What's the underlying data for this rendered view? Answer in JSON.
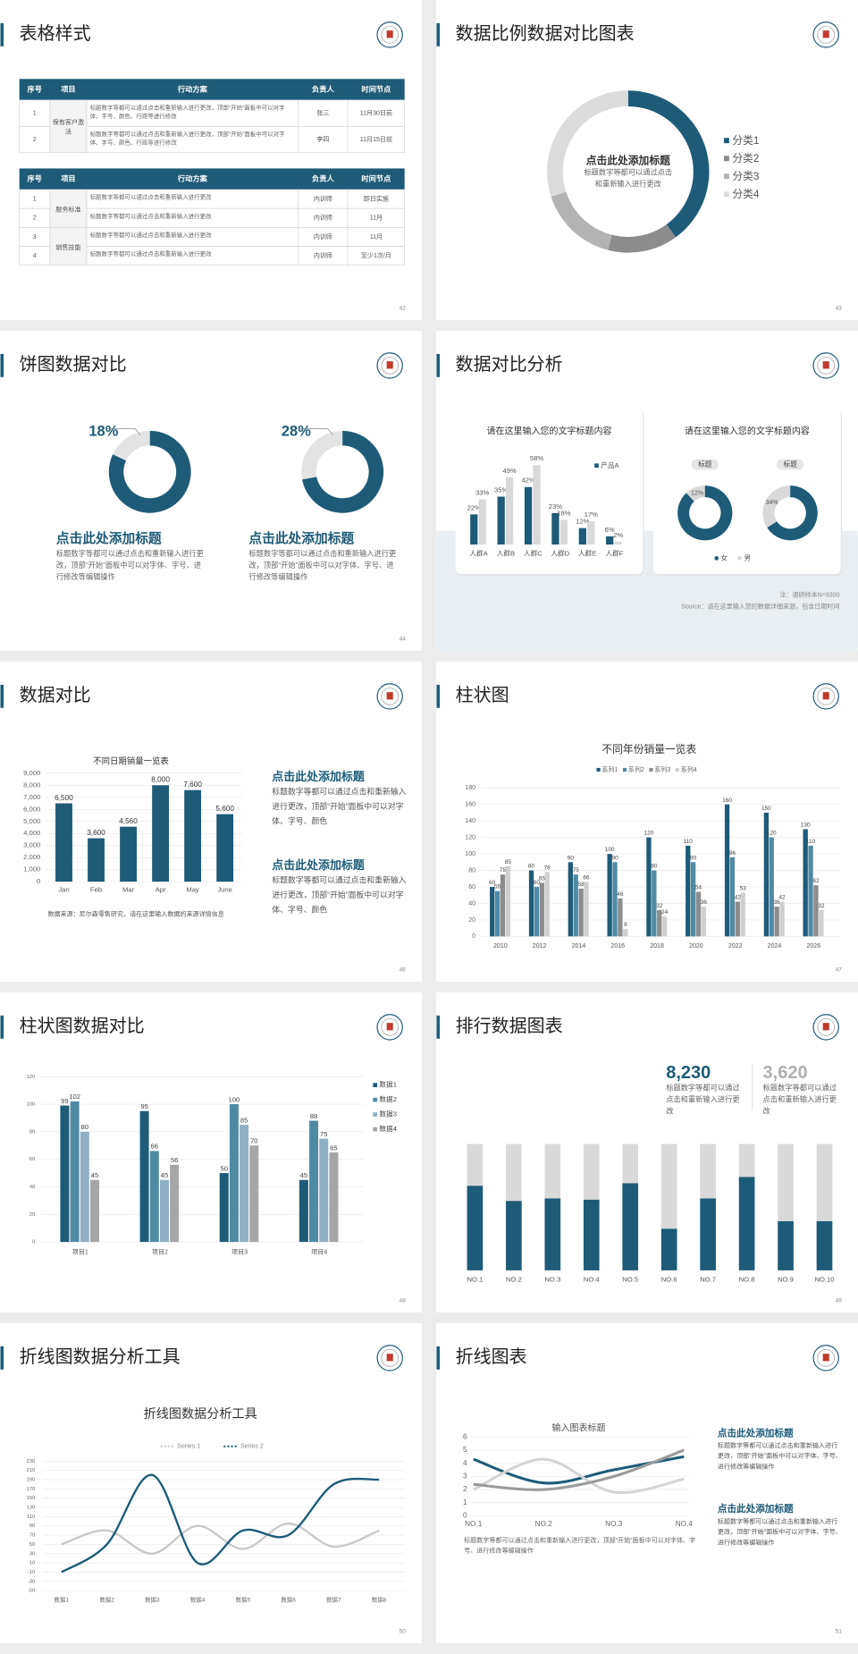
{
  "slides": [
    {
      "title": "表格样式",
      "page": "42",
      "tables": [
        {
          "header": [
            "序号",
            "项目",
            "行动方案",
            "负责人",
            "时间节点"
          ],
          "groups": [
            {
              "item": "保有客户激活",
              "rows": [
                [
                  "1",
                  "标题数字等都可以通过点击和重新输入进行更改，顶部“开始”面板中可以对字体、字号、颜色、行距等进行修改",
                  "张三",
                  "11月30日前"
                ],
                [
                  "2",
                  "标题数字等都可以通过点击和重新输入进行更改，顶部“开始”面板中可以对字体、字号、颜色、行距等进行修改",
                  "李四",
                  "11月15日前"
                ]
              ]
            }
          ]
        },
        {
          "header": [
            "序号",
            "项目",
            "行动方案",
            "负责人",
            "时间节点"
          ],
          "groups": [
            {
              "item": "服务标准",
              "rows": [
                [
                  "1",
                  "标题数字等都可以通过点击和重新输入进行更改",
                  "内训师",
                  "即日实施"
                ],
                [
                  "2",
                  "标题数字等都可以通过点击和重新输入进行更改",
                  "内训师",
                  "11月"
                ]
              ]
            },
            {
              "item": "销售技能",
              "rows": [
                [
                  "3",
                  "标题数字等都可以通过点击和重新输入进行更改",
                  "内训师",
                  "11月"
                ],
                [
                  "4",
                  "标题数字等都可以通过点击和重新输入进行更改",
                  "内训师",
                  "至少1次/月"
                ]
              ]
            }
          ]
        }
      ]
    },
    {
      "title": "数据比例数据对比图表",
      "page": "43",
      "chart": {
        "type": "donut",
        "title": "点击此处添加标题",
        "subtitle": "标题数字等都可以通过点击和重新输入进行更改",
        "categories": [
          "分类1",
          "分类2",
          "分类3",
          "分类4"
        ],
        "values": [
          40,
          14,
          16,
          30
        ],
        "colors": [
          "#1e5b78",
          "#8c8c8c",
          "#b3b3b3",
          "#dcdcdc"
        ]
      }
    },
    {
      "title": "饼图数据对比",
      "page": "44",
      "pies": [
        {
          "value": 18,
          "value_label": "18%",
          "heading": "点击此处添加标题",
          "text": "标题数字等都可以通过点击和重新输入进行更改，顶部“开始”面板中可以对字体、字号、进行修改等编辑操作"
        },
        {
          "value": 28,
          "value_label": "28%",
          "heading": "点击此处添加标题",
          "text": "标题数字等都可以通过点击和重新输入进行更改，顶部“开始”面板中可以对字体、字号、进行修改等编辑操作"
        }
      ]
    },
    {
      "title": "数据对比分析",
      "page": "45",
      "cards": [
        {
          "title": "请在这里输入您的文字标题内容",
          "chart": {
            "type": "bar",
            "categories": [
              "人群A",
              "人群B",
              "人群C",
              "人群D",
              "人群E",
              "人群F"
            ],
            "series": [
              {
                "name": "产品A",
                "color": "#1e5b78",
                "values": [
                  22,
                  35,
                  42,
                  23,
                  12,
                  6
                ],
                "value_labels": [
                  "22%",
                  "35%",
                  "42%",
                  "23%",
                  "12%",
                  "6%"
                ]
              },
              {
                "color": "#d9d9d9",
                "values": [
                  33,
                  49,
                  58,
                  18,
                  17,
                  2
                ],
                "value_labels": [
                  "33%",
                  "49%",
                  "58%",
                  "18%",
                  "17%",
                  "2%"
                ]
              }
            ]
          }
        },
        {
          "title": "请在这里输入您的文字标题内容",
          "pies": [
            {
              "tag": "标题",
              "value": 12,
              "value_label": "12%"
            },
            {
              "tag": "标题",
              "value": 34,
              "value_label": "34%"
            }
          ],
          "legend": [
            {
              "name": "女",
              "color": "#1e5b78"
            },
            {
              "name": "男",
              "color": "#d9d9d9"
            }
          ]
        }
      ],
      "notes": [
        "注：调研样本N=9300",
        "Source：请在这里输入您的数据详细来源，包含日期时间"
      ]
    },
    {
      "title": "数据对比",
      "page": "46",
      "chart": {
        "type": "bar",
        "title": "不同日期销量一览表",
        "categories": [
          "Jan",
          "Feb",
          "Mar",
          "Apr",
          "May",
          "June"
        ],
        "values": [
          6500,
          3600,
          4560,
          8000,
          7600,
          5600
        ],
        "value_labels": [
          "6,500",
          "3,600",
          "4,560",
          "8,000",
          "7,600",
          "5,600"
        ],
        "color": "#1e5b78",
        "ylim": [
          0,
          9000
        ],
        "yticks": [
          0,
          {
            "value": 1000,
            "label": "1,000"
          },
          {
            "value": 2000,
            "label": "2,000"
          },
          {
            "value": 3000,
            "label": "3,000"
          },
          {
            "value": 4000,
            "label": "4,000"
          },
          {
            "value": 5000,
            "label": "5,000"
          },
          {
            "value": 6000,
            "label": "6,000"
          },
          {
            "value": 7000,
            "label": "7,000"
          },
          {
            "value": 8000,
            "label": "8,000"
          },
          {
            "value": 9000,
            "label": "9,000"
          }
        ],
        "grid": true,
        "source": "数据来源：尼尔森零售研究，请在这里输入数据的来源详情信息"
      },
      "blocks": [
        {
          "heading": "点击此处添加标题",
          "text": "标题数字等都可以通过点击和重新输入进行更改，顶部“开始”面板中可以对字体、字号、颜色"
        },
        {
          "heading": "点击此处添加标题",
          "text": "标题数字等都可以通过点击和重新输入进行更改，顶部“开始”面板中可以对字体、字号、颜色"
        }
      ]
    },
    {
      "title": "柱状图",
      "page": "47",
      "chart": {
        "type": "bar",
        "title": "不同年份销量一览表",
        "categories": [
          "2010",
          "2012",
          "2014",
          "2016",
          "2018",
          "2020",
          "2022",
          "2024",
          "2026"
        ],
        "series": [
          {
            "name": "系列1",
            "color": "#1e5b78",
            "values": [
              60,
              80,
              90,
              100,
              120,
              110,
              160,
              150,
              130
            ]
          },
          {
            "name": "系列2",
            "color": "#4f8aa5",
            "values": [
              55,
              60,
              75,
              90,
              80,
              90,
              96,
              120,
              110
            ]
          },
          {
            "name": "系列3",
            "color": "#8c8c8c",
            "values": [
              75,
              65,
              58,
              46,
              32,
              54,
              42,
              36,
              62
            ]
          },
          {
            "name": "系列4",
            "color": "#cfcfcf",
            "values": [
              85,
              78,
              66,
              9,
              24,
              36,
              53,
              42,
              32
            ]
          }
        ],
        "ylim": [
          0,
          180
        ],
        "yticks": [
          0,
          20,
          40,
          60,
          80,
          100,
          120,
          140,
          160,
          180
        ],
        "grid": true
      }
    },
    {
      "title": "柱状图数据对比",
      "page": "48",
      "chart": {
        "type": "bar",
        "categories": [
          "项目1",
          "项目2",
          "项目3",
          "项目4"
        ],
        "series": [
          {
            "name": "数据1",
            "color": "#1e5b78",
            "values": [
              99,
              95,
              50,
              45
            ]
          },
          {
            "name": "数据2",
            "color": "#4f8aa5",
            "values": [
              102,
              66,
              100,
              88
            ]
          },
          {
            "name": "数据3",
            "color": "#8fb0c2",
            "values": [
              80,
              45,
              85,
              75
            ]
          },
          {
            "name": "数据4",
            "color": "#a6a6a6",
            "values": [
              45,
              56,
              70,
              65
            ]
          }
        ],
        "ylim": [
          0,
          120
        ],
        "yticks": [
          0,
          20,
          40,
          60,
          80,
          100,
          120
        ],
        "grid": true
      }
    },
    {
      "title": "排行数据图表",
      "page": "49",
      "stats": [
        {
          "number": "8,230",
          "text": "标题数字等都可以通过点击和重新输入进行更改"
        },
        {
          "number": "3,620",
          "text": "标题数字等都可以通过点击和重新输入进行更改"
        }
      ],
      "chart": {
        "type": "stacked-bar",
        "categories": [
          "NO.1",
          "NO.2",
          "NO.3",
          "NO.4",
          "NO.5",
          "NO.6",
          "NO.7",
          "NO.8",
          "NO.9",
          "NO.10"
        ],
        "series": [
          {
            "color": "#1e5b78",
            "values": [
              67,
              55,
              57,
              56,
              69,
              33,
              57,
              74,
              39,
              39
            ]
          },
          {
            "color": "#d9d9d9",
            "values": [
              33,
              45,
              43,
              44,
              31,
              67,
              43,
              26,
              61,
              61
            ]
          }
        ]
      }
    },
    {
      "title": "折线图数据分析工具",
      "page": "50",
      "chart": {
        "type": "line",
        "title": "折线图数据分析工具",
        "categories": [
          "数据1",
          "数据2",
          "数据3",
          "数据4",
          "数据5",
          "数据6",
          "数据7",
          "数据8"
        ],
        "series": [
          {
            "name": "Series 1",
            "color": "#c8c8c8",
            "values": [
              50,
              80,
              30,
              90,
              40,
              95,
              45,
              80
            ]
          },
          {
            "name": "Series 2",
            "color": "#1e5b78",
            "values": [
              -10,
              50,
              200,
              10,
              80,
              70,
              180,
              190
            ]
          }
        ],
        "ylim": [
          -50,
          230
        ],
        "yticks": [
          -50,
          -30,
          -10,
          10,
          30,
          50,
          70,
          90,
          110,
          130,
          150,
          170,
          190,
          210,
          230
        ],
        "grid": true
      }
    },
    {
      "title": "折线图表",
      "page": "51",
      "chart": {
        "type": "line",
        "title": "输入图表标题",
        "categories": [
          "NO.1",
          "NO.2",
          "NO.3",
          "NO.4"
        ],
        "series": [
          {
            "color": "#1e5b78",
            "values": [
              4.3,
              2.5,
              3.5,
              4.5
            ]
          },
          {
            "color": "#d4d4d4",
            "values": [
              2.0,
              4.3,
              1.8,
              2.8
            ]
          },
          {
            "color": "#9a9a9a",
            "values": [
              2.4,
              2.0,
              3.0,
              5.0
            ]
          }
        ],
        "ylim": [
          0,
          6
        ],
        "yticks": [
          0,
          1,
          2,
          3,
          4,
          5,
          6
        ],
        "grid": true,
        "note": "标题数字等都可以通过点击和重新输入进行更改，顶部“开始”面板中可以对字体、字号、进行修改等编辑操作"
      },
      "blocks": [
        {
          "heading": "点击此处添加标题",
          "text": "标题数字等都可以通过点击和重新输入进行更改，顶部“开始”面板中可以对字体、字号、进行修改等编辑操作"
        },
        {
          "heading": "点击此处添加标题",
          "text": "标题数字等都可以通过点击和重新输入进行更改，顶部“开始”面板中可以对字体、字号、进行修改等编辑操作"
        }
      ]
    }
  ]
}
